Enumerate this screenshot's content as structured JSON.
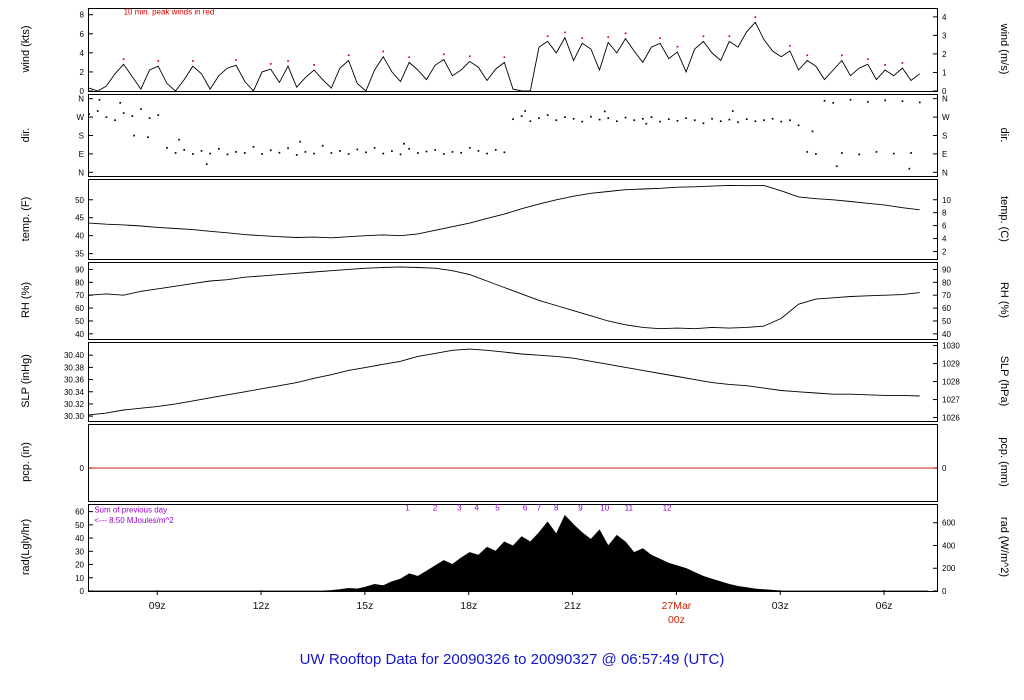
{
  "title": "UW Rooftop Data for 20090326  to  20090327 @ 06:57:49  (UTC)",
  "title_color": "#1414cc",
  "xaxis": {
    "lim": [
      7,
      31.5
    ],
    "ticks": [
      {
        "v": 9,
        "label": "09z"
      },
      {
        "v": 12,
        "label": "12z"
      },
      {
        "v": 15,
        "label": "15z"
      },
      {
        "v": 18,
        "label": "18z"
      },
      {
        "v": 21,
        "label": "21z"
      },
      {
        "v": 24,
        "label": "27Mar",
        "label2": "00z",
        "color": "#cc2200"
      },
      {
        "v": 27,
        "label": "03z"
      },
      {
        "v": 30,
        "label": "06z"
      }
    ]
  },
  "chart_data": [
    {
      "id": "wind",
      "type": "line",
      "ylabel_left": "wind (kts)",
      "ylabel_right": "wind (m/s)",
      "ylim": [
        0,
        8.6
      ],
      "ticks_left": [
        {
          "v": 0,
          "t": "0"
        },
        {
          "v": 2,
          "t": "2"
        },
        {
          "v": 4,
          "t": "4"
        },
        {
          "v": 6,
          "t": "6"
        },
        {
          "v": 8,
          "t": "8"
        }
      ],
      "ticks_right": [
        {
          "v": 0,
          "t": "0"
        },
        {
          "v": 1.944,
          "t": "1"
        },
        {
          "v": 3.889,
          "t": "2"
        },
        {
          "v": 5.833,
          "t": "3"
        },
        {
          "v": 7.778,
          "t": "4"
        }
      ],
      "series": [
        {
          "name": "wind-speed",
          "type": "line",
          "color": "#000000",
          "x_start": 7,
          "x_step": 0.25,
          "peak_dots": {
            "color": "#dd0000",
            "offset": 0.55,
            "min": 1.2
          },
          "values": [
            0.3,
            0,
            0.5,
            1.8,
            2.8,
            1.5,
            0.2,
            2.2,
            2.6,
            0.8,
            0,
            1.2,
            2.6,
            1.8,
            0.2,
            1.6,
            2.4,
            2.7,
            1,
            0,
            2,
            2.3,
            0.9,
            2.6,
            0.4,
            1.4,
            2.2,
            1.2,
            0.3,
            2.4,
            3.2,
            0.8,
            0,
            2.2,
            3.6,
            2,
            1,
            3,
            2.2,
            1.2,
            2.7,
            3.3,
            1.6,
            2.2,
            3.1,
            2.5,
            1.1,
            2.3,
            3,
            0.2,
            0,
            0,
            4.6,
            5.2,
            4,
            5.6,
            3.2,
            5,
            4.4,
            2.2,
            5.1,
            4,
            5.5,
            4.2,
            3,
            4.6,
            5,
            3.4,
            4.1,
            2,
            4.4,
            5.2,
            4,
            3.2,
            5.2,
            4.6,
            6.2,
            7.2,
            5.4,
            4.2,
            3.6,
            4.2,
            2.2,
            3.2,
            2.6,
            1.2,
            2.2,
            3.2,
            1.6,
            2.4,
            2.8,
            1.2,
            2.2,
            1.6,
            2.4,
            1.1,
            1.8
          ]
        }
      ],
      "annotations": [
        {
          "text": "10 min. peak winds in red",
          "color": "#dd0000",
          "tx": 8.0,
          "ty": 8.0,
          "anchor": "start",
          "size": 8
        }
      ]
    },
    {
      "id": "dir",
      "type": "scatter",
      "ylabel_left": "dir.",
      "ylabel_right": "dir.",
      "ylim": [
        -18,
        378
      ],
      "ticks_left": [
        {
          "v": 0,
          "t": "N"
        },
        {
          "v": 90,
          "t": "E"
        },
        {
          "v": 180,
          "t": "S"
        },
        {
          "v": 270,
          "t": "W"
        },
        {
          "v": 360,
          "t": "N"
        }
      ],
      "ticks_right": [
        {
          "v": 0,
          "t": "N"
        },
        {
          "v": 90,
          "t": "E"
        },
        {
          "v": 180,
          "t": "S"
        },
        {
          "v": 270,
          "t": "W"
        },
        {
          "v": 360,
          "t": "N"
        }
      ],
      "series": [
        {
          "name": "wind-direction",
          "type": "scatter",
          "color": "#000000",
          "x_start": 7,
          "x_step": 0.25,
          "values": [
            285,
            300,
            270,
            255,
            290,
            275,
            310,
            265,
            280,
            120,
            95,
            110,
            90,
            105,
            92,
            115,
            88,
            100,
            95,
            125,
            90,
            108,
            96,
            118,
            85,
            100,
            92,
            130,
            95,
            105,
            90,
            112,
            98,
            120,
            92,
            104,
            88,
            115,
            95,
            102,
            110,
            90,
            100,
            96,
            120,
            105,
            92,
            110,
            98,
            260,
            275,
            250,
            265,
            280,
            255,
            270,
            262,
            248,
            272,
            258,
            265,
            250,
            268,
            255,
            262,
            270,
            248,
            260,
            252,
            265,
            255,
            240,
            262,
            250,
            258,
            245,
            260,
            250,
            255,
            262,
            248,
            255,
            230,
            100,
            90,
            350,
            340,
            95,
            355,
            88,
            345,
            100,
            352,
            92,
            348,
            95,
            342
          ]
        },
        {
          "name": "wind-direction-outliers",
          "type": "scatter",
          "color": "#000000",
          "points": [
            [
              7.3,
              355
            ],
            [
              7.9,
              340
            ],
            [
              8.3,
              180
            ],
            [
              8.7,
              172
            ],
            [
              9.6,
              160
            ],
            [
              10.4,
              40
            ],
            [
              13.1,
              150
            ],
            [
              16.1,
              140
            ],
            [
              19.6,
              300
            ],
            [
              21.9,
              298
            ],
            [
              23.1,
              238
            ],
            [
              25.6,
              300
            ],
            [
              27.9,
              200
            ],
            [
              28.6,
              30
            ],
            [
              30.7,
              18
            ]
          ]
        }
      ],
      "annotations": []
    },
    {
      "id": "temp",
      "type": "line",
      "ylabel_left": "temp. (F)",
      "ylabel_right": "temp. (C)",
      "ylim": [
        33.5,
        55.5
      ],
      "ticks_left": [
        {
          "v": 35,
          "t": "35"
        },
        {
          "v": 40,
          "t": "40"
        },
        {
          "v": 45,
          "t": "45"
        },
        {
          "v": 50,
          "t": "50"
        }
      ],
      "ticks_right": [
        {
          "v": 35.6,
          "t": "2"
        },
        {
          "v": 39.2,
          "t": "4"
        },
        {
          "v": 42.8,
          "t": "6"
        },
        {
          "v": 46.4,
          "t": "8"
        },
        {
          "v": 50,
          "t": "10"
        }
      ],
      "series": [
        {
          "name": "temperature",
          "type": "line",
          "color": "#000000",
          "x_start": 7,
          "x_step": 0.5,
          "values": [
            43.5,
            43.2,
            43,
            42.7,
            42.3,
            42,
            41.7,
            41.2,
            40.8,
            40.3,
            40,
            39.7,
            39.5,
            39.6,
            39.4,
            39.7,
            40,
            40.2,
            40,
            40.5,
            41.5,
            42.5,
            43.5,
            44.8,
            46,
            47.5,
            48.8,
            50,
            51,
            51.8,
            52.3,
            52.8,
            53,
            53.2,
            53.5,
            53.6,
            53.8,
            54,
            53.9,
            54,
            52.5,
            50.8,
            50.3,
            50,
            49.5,
            49,
            48.5,
            47.8,
            47.2
          ]
        }
      ],
      "annotations": []
    },
    {
      "id": "rh",
      "type": "line",
      "ylabel_left": "RH (%)",
      "ylabel_right": "RH (%)",
      "ylim": [
        36,
        95
      ],
      "ticks_left": [
        {
          "v": 40,
          "t": "40"
        },
        {
          "v": 50,
          "t": "50"
        },
        {
          "v": 60,
          "t": "60"
        },
        {
          "v": 70,
          "t": "70"
        },
        {
          "v": 80,
          "t": "80"
        },
        {
          "v": 90,
          "t": "90"
        }
      ],
      "ticks_right": [
        {
          "v": 40,
          "t": "40"
        },
        {
          "v": 50,
          "t": "50"
        },
        {
          "v": 60,
          "t": "60"
        },
        {
          "v": 70,
          "t": "70"
        },
        {
          "v": 80,
          "t": "80"
        },
        {
          "v": 90,
          "t": "90"
        }
      ],
      "series": [
        {
          "name": "relative-humidity",
          "type": "line",
          "color": "#000000",
          "x_start": 7,
          "x_step": 0.5,
          "values": [
            70,
            71,
            70,
            73,
            75,
            77,
            79,
            81,
            82,
            84,
            85,
            86,
            87,
            88,
            89,
            90,
            91,
            91.5,
            92,
            91.5,
            91,
            89,
            86,
            81,
            76,
            71,
            66,
            62,
            58,
            54,
            50,
            47,
            45,
            44,
            44.5,
            44,
            45,
            44.5,
            45,
            46,
            52,
            63,
            67,
            68,
            69,
            69.5,
            70,
            70.5,
            72
          ]
        }
      ],
      "annotations": []
    },
    {
      "id": "slp",
      "type": "line",
      "ylabel_left": "SLP (inHg)",
      "ylabel_right": "SLP (hPa)",
      "ylim": [
        30.292,
        30.42
      ],
      "ticks_left": [
        {
          "v": 30.3,
          "t": "30.30"
        },
        {
          "v": 30.32,
          "t": "30.32"
        },
        {
          "v": 30.34,
          "t": "30.34"
        },
        {
          "v": 30.36,
          "t": "30.36"
        },
        {
          "v": 30.38,
          "t": "30.38"
        },
        {
          "v": 30.4,
          "t": "30.40"
        }
      ],
      "ticks_right": [
        {
          "v": 30.2977,
          "t": "1026"
        },
        {
          "v": 30.3272,
          "t": "1027"
        },
        {
          "v": 30.3567,
          "t": "1028"
        },
        {
          "v": 30.3863,
          "t": "1029"
        },
        {
          "v": 30.4158,
          "t": "1030"
        }
      ],
      "series": [
        {
          "name": "sea-level-pressure",
          "type": "line",
          "color": "#000000",
          "x_start": 7,
          "x_step": 0.5,
          "values": [
            30.302,
            30.305,
            30.31,
            30.313,
            30.316,
            30.32,
            30.325,
            30.33,
            30.335,
            30.34,
            30.345,
            30.35,
            30.355,
            30.362,
            30.368,
            30.375,
            30.38,
            30.385,
            30.39,
            30.398,
            30.403,
            30.408,
            30.41,
            30.408,
            30.405,
            30.402,
            30.4,
            30.398,
            30.395,
            30.39,
            30.385,
            30.38,
            30.375,
            30.37,
            30.365,
            30.36,
            30.355,
            30.352,
            30.35,
            30.346,
            30.342,
            30.34,
            30.338,
            30.336,
            30.336,
            30.335,
            30.334,
            30.334,
            30.333
          ]
        }
      ],
      "annotations": []
    },
    {
      "id": "pcp",
      "type": "line",
      "ylabel_left": "pcp. (in)",
      "ylabel_right": "pcp. (mm)",
      "ylim": [
        -2.6,
        3.4
      ],
      "ticks_left": [
        {
          "v": 0,
          "t": "0"
        }
      ],
      "ticks_right": [
        {
          "v": 0,
          "t": "0"
        }
      ],
      "series": [
        {
          "name": "precipitation",
          "type": "line",
          "color": "#cc0000",
          "x_start": 7,
          "x_step": 24.5,
          "values": [
            0,
            0
          ]
        }
      ],
      "annotations": []
    },
    {
      "id": "rad",
      "type": "area",
      "ylabel_left": "rad(Lgly/hr)",
      "ylabel_right": "rad (W/m^2)",
      "ylim": [
        0,
        65
      ],
      "ticks_left": [
        {
          "v": 0,
          "t": "0"
        },
        {
          "v": 10,
          "t": "10"
        },
        {
          "v": 20,
          "t": "20"
        },
        {
          "v": 30,
          "t": "30"
        },
        {
          "v": 40,
          "t": "40"
        },
        {
          "v": 50,
          "t": "50"
        },
        {
          "v": 60,
          "t": "60"
        }
      ],
      "ticks_right": [
        {
          "v": 0,
          "t": "0"
        },
        {
          "v": 17.2,
          "t": "200"
        },
        {
          "v": 34.4,
          "t": "400"
        },
        {
          "v": 51.6,
          "t": "600"
        }
      ],
      "series": [
        {
          "name": "solar-radiation",
          "type": "area",
          "color": "#000000",
          "x_start": 7,
          "x_step": 0.25,
          "values": [
            0,
            0,
            0,
            0,
            0,
            0,
            0,
            0,
            0,
            0,
            0,
            0,
            0,
            0,
            0,
            0,
            0,
            0,
            0,
            0,
            0,
            0,
            0,
            0,
            0,
            0,
            0,
            0,
            0.4,
            1,
            2,
            1.5,
            3,
            5,
            4,
            7,
            9,
            13,
            11,
            15,
            19,
            23,
            20,
            25,
            29,
            27,
            33,
            30,
            37,
            34,
            41,
            37,
            44,
            52,
            43,
            57,
            50,
            44,
            39,
            46,
            34,
            42,
            37,
            29,
            32,
            27,
            24,
            21,
            19,
            17,
            14,
            11,
            9,
            7,
            5,
            3.5,
            2.5,
            1.5,
            1,
            0.5,
            0,
            0,
            0,
            0,
            0,
            0,
            0,
            0,
            0,
            0,
            0,
            0,
            0,
            0,
            0,
            0,
            0,
            0
          ]
        }
      ],
      "annotations": [
        {
          "text": "Sum of previous day",
          "color": "#9900cc",
          "tx": 7.15,
          "ty": 59.5,
          "anchor": "start",
          "size": 8
        },
        {
          "text": "<--- 8.50 MJoules/m^2",
          "color": "#9900cc",
          "tx": 7.15,
          "ty": 51.5,
          "anchor": "start",
          "size": 8
        },
        {
          "text": "1",
          "color": "#9900cc",
          "tx": 16.2,
          "ty": 61,
          "anchor": "middle",
          "size": 8
        },
        {
          "text": "2",
          "color": "#9900cc",
          "tx": 17.0,
          "ty": 61,
          "anchor": "middle",
          "size": 8
        },
        {
          "text": "3",
          "color": "#9900cc",
          "tx": 17.7,
          "ty": 61,
          "anchor": "middle",
          "size": 8
        },
        {
          "text": "4",
          "color": "#9900cc",
          "tx": 18.2,
          "ty": 61,
          "anchor": "middle",
          "size": 8
        },
        {
          "text": "5",
          "color": "#9900cc",
          "tx": 18.8,
          "ty": 61,
          "anchor": "middle",
          "size": 8
        },
        {
          "text": "6",
          "color": "#9900cc",
          "tx": 19.6,
          "ty": 61,
          "anchor": "middle",
          "size": 8
        },
        {
          "text": "7",
          "color": "#9900cc",
          "tx": 20.0,
          "ty": 61,
          "anchor": "middle",
          "size": 8
        },
        {
          "text": "8",
          "color": "#9900cc",
          "tx": 20.5,
          "ty": 61,
          "anchor": "middle",
          "size": 8
        },
        {
          "text": "9",
          "color": "#9900cc",
          "tx": 21.2,
          "ty": 61,
          "anchor": "middle",
          "size": 8
        },
        {
          "text": "10",
          "color": "#9900cc",
          "tx": 21.9,
          "ty": 61,
          "anchor": "middle",
          "size": 8
        },
        {
          "text": "11",
          "color": "#9900cc",
          "tx": 22.6,
          "ty": 61,
          "anchor": "middle",
          "size": 8
        },
        {
          "text": "12",
          "color": "#9900cc",
          "tx": 23.7,
          "ty": 61,
          "anchor": "middle",
          "size": 8
        }
      ]
    }
  ]
}
